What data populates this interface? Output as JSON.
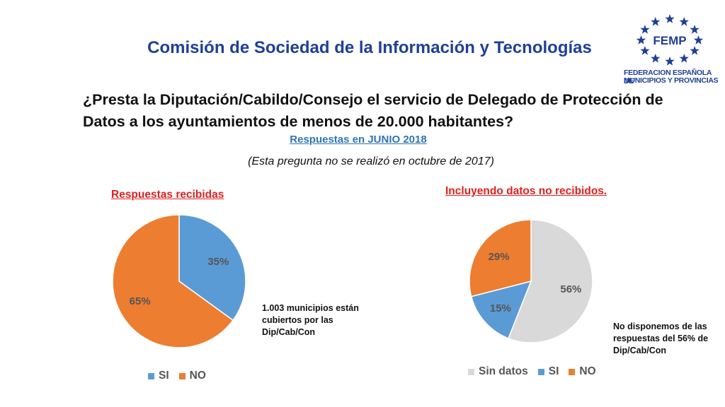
{
  "header": {
    "title": "Comisión de Sociedad de la Información y Tecnologías"
  },
  "logo": {
    "text": "FEMP",
    "line1": "FEDERACION ESPAÑOLA DE",
    "line2": "MUNICIPIOS Y PROVINCIAS",
    "icon": "femp-stars-logo-icon"
  },
  "question": "¿Presta la Diputación/Cabildo/Consejo el servicio de Delegado de Protección de Datos a los ayuntamientos de menos de 20.000 habitantes?",
  "subtitle": "Respuestas en JUNIO 2018",
  "note": "(Esta pregunta no se realizó en octubre de 2017)",
  "colors": {
    "si": "#5b9bd5",
    "no": "#ed7d31",
    "sin_datos": "#d9d9d9",
    "title_blue": "#1f3f99",
    "chart_title_red": "#e02020"
  },
  "annotations": {
    "chart1": "1.003 municipios están cubiertos por las Dip/Cab/Con",
    "chart2": "No disponemos de las respuestas del 56% de Dip/Cab/Con"
  },
  "chart_data": [
    {
      "type": "pie",
      "title": "Respuestas recibidas",
      "categories": [
        "SI",
        "NO"
      ],
      "values": [
        35,
        65
      ],
      "labels": [
        "35%",
        "65%"
      ],
      "colors": [
        "#5b9bd5",
        "#ed7d31"
      ],
      "legend": "bottom"
    },
    {
      "type": "pie",
      "title": "Incluyendo datos no recibidos.",
      "categories": [
        "Sin datos",
        "SI",
        "NO"
      ],
      "values": [
        56,
        15,
        29
      ],
      "labels": [
        "56%",
        "15%",
        "29%"
      ],
      "colors": [
        "#d9d9d9",
        "#5b9bd5",
        "#ed7d31"
      ],
      "legend": "bottom"
    }
  ]
}
